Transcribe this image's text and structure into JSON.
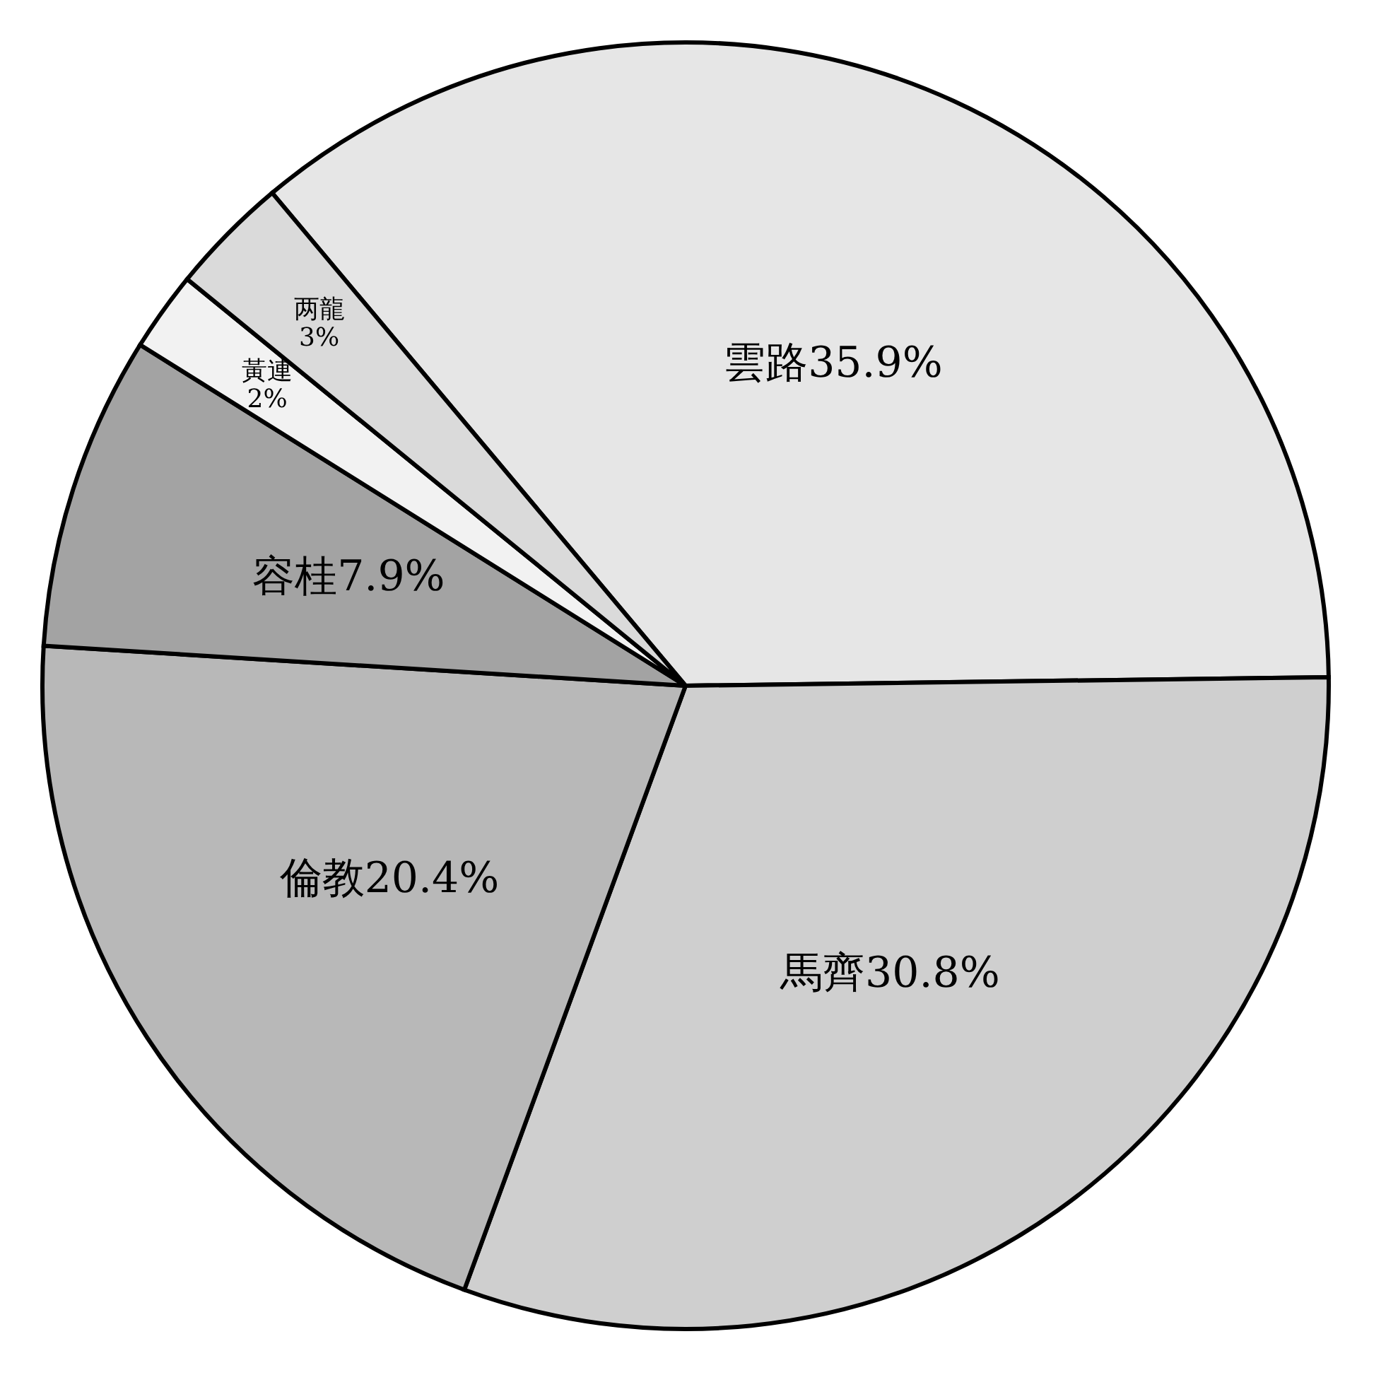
{
  "chart_data": {
    "type": "pie",
    "categories": [
      "雲路",
      "馬齊",
      "倫教",
      "容桂",
      "黃連",
      "两龍"
    ],
    "values": [
      35.9,
      30.8,
      20.4,
      7.9,
      2,
      3
    ],
    "value_labels": [
      "35.9%",
      "30.8%",
      "20.4%",
      "7.9%",
      "2%",
      "3%"
    ],
    "colors": [
      "#e6e6e6",
      "#cfcfcf",
      "#b8b8b8",
      "#a3a3a3",
      "#f2f2f2",
      "#dadada"
    ],
    "legend": false
  }
}
